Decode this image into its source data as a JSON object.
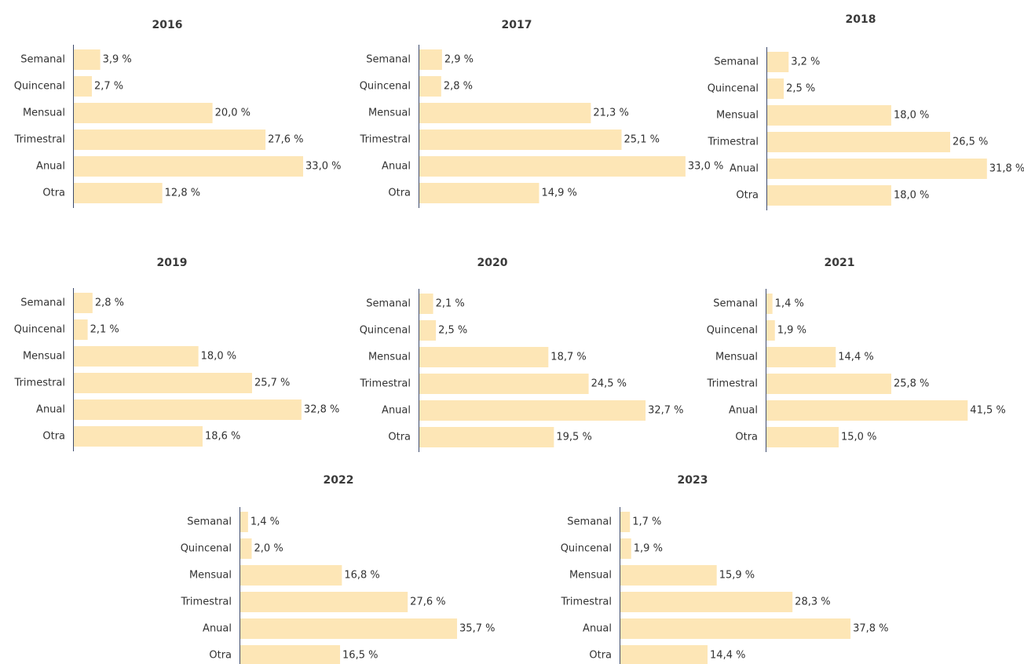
{
  "chart_data": [
    {
      "type": "bar",
      "title": "2016",
      "color": "#fde6b6",
      "categories": [
        "Semanal",
        "Quincenal",
        "Mensual",
        "Trimestral",
        "Anual",
        "Otra"
      ],
      "values": [
        3.9,
        2.7,
        20.0,
        27.6,
        33.0,
        12.8
      ],
      "value_labels": [
        "3,9 %",
        "2,7 %",
        "20,0 %",
        "27,6 %",
        "33,0 %",
        "12,8 %"
      ]
    },
    {
      "type": "bar",
      "title": "2017",
      "color": "#fde6b6",
      "categories": [
        "Semanal",
        "Quincenal",
        "Mensual",
        "Trimestral",
        "Anual",
        "Otra"
      ],
      "values": [
        2.9,
        2.8,
        21.3,
        25.1,
        33.0,
        14.9
      ],
      "value_labels": [
        "2,9 %",
        "2,8 %",
        "21,3 %",
        "25,1 %",
        "33,0 %",
        "14,9 %"
      ]
    },
    {
      "type": "bar",
      "title": "2018",
      "color": "#fde6b6",
      "categories": [
        "Semanal",
        "Quincenal",
        "Mensual",
        "Trimestral",
        "Anual",
        "Otra"
      ],
      "values": [
        3.2,
        2.5,
        18.0,
        26.5,
        31.8,
        18.0
      ],
      "value_labels": [
        "3,2 %",
        "2,5 %",
        "18,0 %",
        "26,5 %",
        "31,8 %",
        "18,0 %"
      ]
    },
    {
      "type": "bar",
      "title": "2019",
      "color": "#fde6b6",
      "categories": [
        "Semanal",
        "Quincenal",
        "Mensual",
        "Trimestral",
        "Anual",
        "Otra"
      ],
      "values": [
        2.8,
        2.1,
        18.0,
        25.7,
        32.8,
        18.6
      ],
      "value_labels": [
        "2,8 %",
        "2,1 %",
        "18,0 %",
        "25,7 %",
        "32,8 %",
        "18,6 %"
      ]
    },
    {
      "type": "bar",
      "title": "2020",
      "color": "#fde6b6",
      "categories": [
        "Semanal",
        "Quincenal",
        "Mensual",
        "Trimestral",
        "Anual",
        "Otra"
      ],
      "values": [
        2.1,
        2.5,
        18.7,
        24.5,
        32.7,
        19.5
      ],
      "value_labels": [
        "2,1 %",
        "2,5 %",
        "18,7 %",
        "24,5 %",
        "32,7 %",
        "19,5 %"
      ]
    },
    {
      "type": "bar",
      "title": "2021",
      "color": "#fde6b6",
      "categories": [
        "Semanal",
        "Quincenal",
        "Mensual",
        "Trimestral",
        "Anual",
        "Otra"
      ],
      "values": [
        1.4,
        1.9,
        14.4,
        25.8,
        41.5,
        15.0
      ],
      "value_labels": [
        "1,4 %",
        "1,9 %",
        "14,4 %",
        "25,8 %",
        "41,5 %",
        "15,0 %"
      ]
    },
    {
      "type": "bar",
      "title": "2022",
      "color": "#fde6b6",
      "categories": [
        "Semanal",
        "Quincenal",
        "Mensual",
        "Trimestral",
        "Anual",
        "Otra"
      ],
      "values": [
        1.4,
        2.0,
        16.8,
        27.6,
        35.7,
        16.5
      ],
      "value_labels": [
        "1,4 %",
        "2,0 %",
        "16,8 %",
        "27,6 %",
        "35,7 %",
        "16,5 %"
      ]
    },
    {
      "type": "bar",
      "title": "2023",
      "color": "#fde6b6",
      "categories": [
        "Semanal",
        "Quincenal",
        "Mensual",
        "Trimestral",
        "Anual",
        "Otra"
      ],
      "values": [
        1.7,
        1.9,
        15.9,
        28.3,
        37.8,
        14.4
      ],
      "value_labels": [
        "1,7 %",
        "1,9 %",
        "15,9 %",
        "28,3 %",
        "37,8 %",
        "14,4 %"
      ]
    }
  ]
}
